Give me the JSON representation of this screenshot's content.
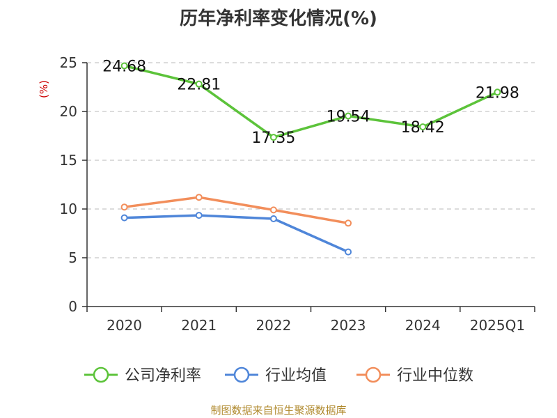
{
  "title": "历年净利率变化情况(%)",
  "footer": "制图数据来自恒生聚源数据库",
  "chart_data": {
    "type": "line",
    "title": "历年净利率变化情况(%)",
    "ylabel": "(%)",
    "xlabel": "",
    "categories": [
      "2020",
      "2021",
      "2022",
      "2023",
      "2024",
      "2025Q1"
    ],
    "ylim": [
      0,
      25
    ],
    "yticks": [
      0,
      5,
      10,
      15,
      20,
      25
    ],
    "grid": true,
    "legend_position": "bottom",
    "series": [
      {
        "name": "公司净利率",
        "color": "#5cc33a",
        "values": [
          24.68,
          22.81,
          17.35,
          19.54,
          18.42,
          21.98
        ],
        "labels": [
          "24.68",
          "22.81",
          "17.35",
          "19.54",
          "18.42",
          "21.98"
        ]
      },
      {
        "name": "行业均值",
        "color": "#4f86d9",
        "values": [
          9.1,
          9.35,
          9.0,
          5.6,
          null,
          null
        ]
      },
      {
        "name": "行业中位数",
        "color": "#f28e5b",
        "values": [
          10.2,
          11.2,
          9.9,
          8.55,
          null,
          null
        ]
      }
    ]
  }
}
